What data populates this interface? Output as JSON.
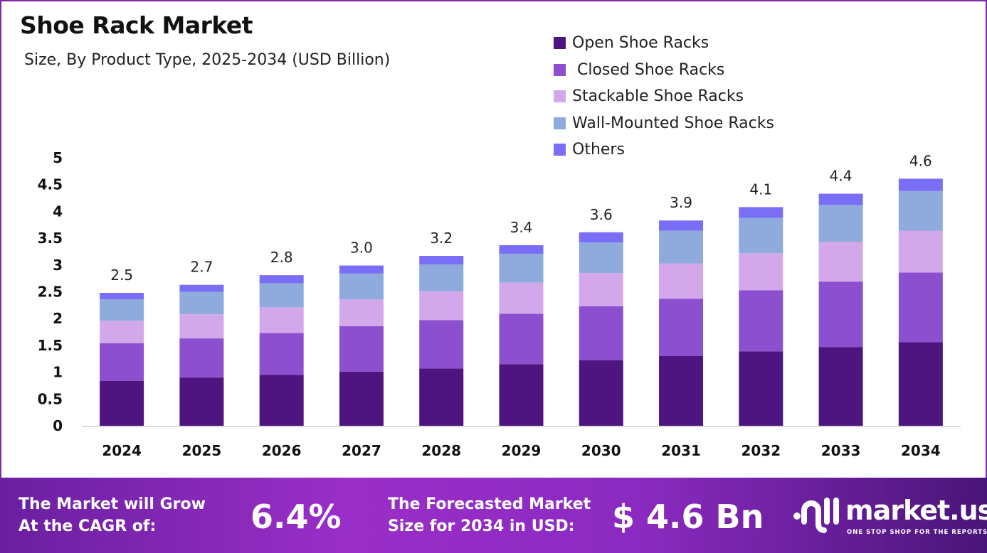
{
  "chart_data": {
    "type": "bar",
    "stacked": true,
    "title": "Shoe Rack Market",
    "subtitle": "Size, By Product Type, 2025-2034 (USD Billion)",
    "categories": [
      "2024",
      "2025",
      "2026",
      "2027",
      "2028",
      "2029",
      "2030",
      "2031",
      "2032",
      "2033",
      "2034"
    ],
    "series": [
      {
        "name": "Open Shoe Racks",
        "color": "#4e1580",
        "values": [
          0.84,
          0.9,
          0.95,
          1.01,
          1.07,
          1.15,
          1.22,
          1.3,
          1.39,
          1.47,
          1.56
        ]
      },
      {
        "name": " Closed Shoe Racks",
        "color": "#8b4fcf",
        "values": [
          0.7,
          0.73,
          0.78,
          0.85,
          0.9,
          0.94,
          1.01,
          1.07,
          1.14,
          1.22,
          1.3
        ]
      },
      {
        "name": "Stackable Shoe Racks",
        "color": "#d3a8eb",
        "values": [
          0.42,
          0.45,
          0.48,
          0.5,
          0.54,
          0.58,
          0.62,
          0.66,
          0.69,
          0.74,
          0.78
        ]
      },
      {
        "name": "Wall-Mounted Shoe Racks",
        "color": "#8faadc",
        "values": [
          0.4,
          0.42,
          0.45,
          0.48,
          0.5,
          0.54,
          0.57,
          0.61,
          0.66,
          0.69,
          0.74
        ]
      },
      {
        "name": "Others",
        "color": "#7a6ef7",
        "values": [
          0.12,
          0.13,
          0.15,
          0.15,
          0.16,
          0.16,
          0.19,
          0.19,
          0.2,
          0.21,
          0.23
        ]
      }
    ],
    "totals": [
      "2.5",
      "2.7",
      "2.8",
      "3.0",
      "3.2",
      "3.4",
      "3.6",
      "3.9",
      "4.1",
      "4.4",
      "4.6"
    ],
    "yticks": [
      "0",
      "0.5",
      "1",
      "1.5",
      "2",
      "2.5",
      "3",
      "3.5",
      "4",
      "4.5",
      "5"
    ],
    "ylim": [
      0,
      5
    ],
    "grid": false,
    "legend_position": "top-right"
  },
  "footer": {
    "cagr_label_1": "The Market will Grow",
    "cagr_label_2": "At the CAGR of:",
    "cagr_value": "6.4%",
    "forecast_label_1": "The Forecasted Market",
    "forecast_label_2": "Size for 2034 in USD:",
    "forecast_value": "$ 4.6 Bn",
    "logo_text": "market.us",
    "logo_tagline": "ONE STOP SHOP FOR THE REPORTS"
  }
}
